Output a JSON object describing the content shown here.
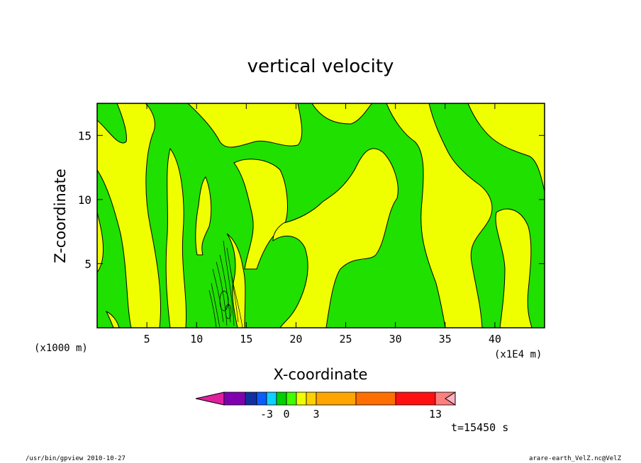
{
  "chart_data": {
    "type": "heatmap",
    "title": "vertical velocity",
    "xlabel": "X-coordinate",
    "ylabel": "Z-coordinate",
    "x_unit_left": "(x1000 m)",
    "x_unit_right": "(x1E4 m)",
    "x_ticks": [
      5,
      10,
      15,
      20,
      25,
      30,
      35,
      40
    ],
    "y_ticks": [
      5,
      10,
      15
    ],
    "xlim": [
      0,
      45
    ],
    "ylim": [
      0,
      17.5
    ],
    "colorbar": {
      "levels": [
        "-3",
        "0",
        "3",
        "13"
      ],
      "colors": [
        "#e0209e",
        "#8000b0",
        "#1030a0",
        "#0a5cff",
        "#10d0ff",
        "#00d000",
        "#40ff00",
        "#f0ff00",
        "#ffd000",
        "#ffa500",
        "#ff6e00",
        "#ff1010",
        "#ff7f7f",
        "#ffb0c0"
      ]
    },
    "contours": {
      "positive_color": "#f0ff00",
      "negative_color": "#20e000"
    },
    "time_label": "t=15450 s"
  },
  "footer": {
    "left": "/usr/bin/gpview   2010-10-27",
    "right": "arare-earth_VelZ.nc@VelZ"
  }
}
